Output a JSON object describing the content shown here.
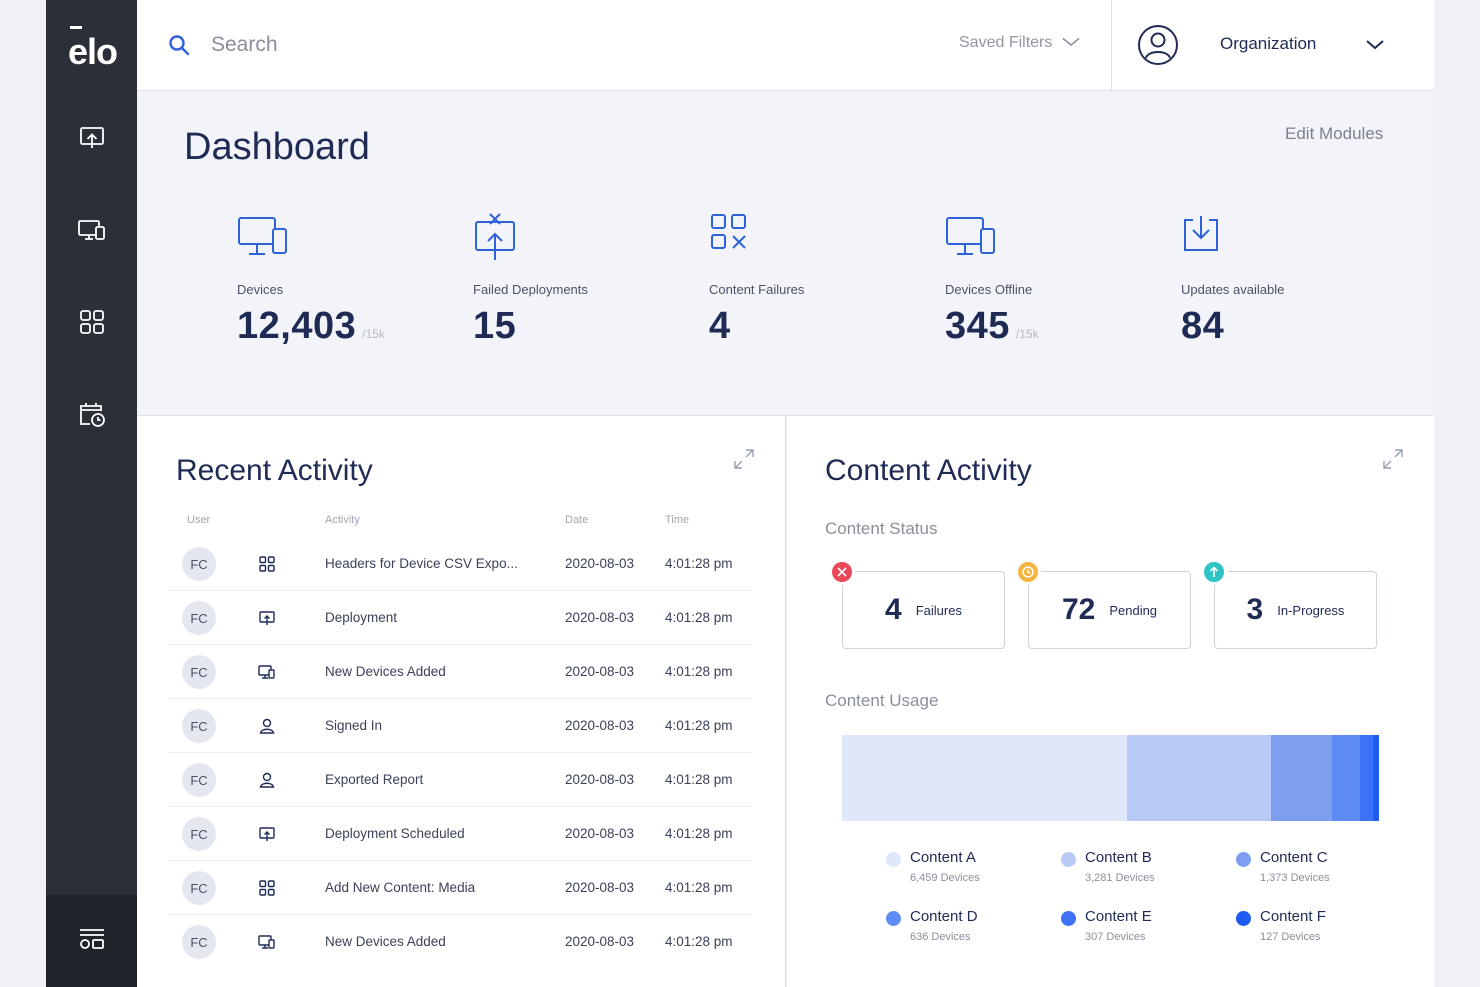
{
  "sidebar": {
    "logo": "ēlo",
    "items": [
      {
        "name": "deployments-nav",
        "icon": "upload-screen-icon"
      },
      {
        "name": "devices-nav",
        "icon": "devices-icon"
      },
      {
        "name": "content-nav",
        "icon": "grid-icon"
      },
      {
        "name": "schedule-nav",
        "icon": "calendar-clock-icon"
      }
    ],
    "bottom_icon": "layout-icon"
  },
  "topbar": {
    "search_placeholder": "Search",
    "saved_filters": "Saved Filters",
    "organization": "Organization"
  },
  "dashboard": {
    "title": "Dashboard",
    "edit_modules": "Edit Modules",
    "stats": [
      {
        "label": "Devices",
        "value": "12,403",
        "suffix": "/15k",
        "icon": "devices-icon"
      },
      {
        "label": "Failed Deployments",
        "value": "15",
        "suffix": "",
        "icon": "failed-deploy-icon"
      },
      {
        "label": "Content Failures",
        "value": "4",
        "suffix": "",
        "icon": "content-failure-icon"
      },
      {
        "label": "Devices Offline",
        "value": "345",
        "suffix": "/15k",
        "icon": "devices-icon"
      },
      {
        "label": "Updates available",
        "value": "84",
        "suffix": "",
        "icon": "download-icon"
      }
    ]
  },
  "recent_activity": {
    "title": "Recent Activity",
    "headers": {
      "user": "User",
      "activity": "Activity",
      "date": "Date",
      "time": "Time"
    },
    "rows": [
      {
        "user": "FC",
        "icon": "grid-icon",
        "activity": "Headers for Device CSV Expo...",
        "date": "2020-08-03",
        "time": "4:01:28 pm"
      },
      {
        "user": "FC",
        "icon": "upload-screen-icon",
        "activity": "Deployment",
        "date": "2020-08-03",
        "time": "4:01:28 pm"
      },
      {
        "user": "FC",
        "icon": "devices-icon",
        "activity": "New Devices Added",
        "date": "2020-08-03",
        "time": "4:01:28 pm"
      },
      {
        "user": "FC",
        "icon": "user-icon",
        "activity": "Signed In",
        "date": "2020-08-03",
        "time": "4:01:28 pm"
      },
      {
        "user": "FC",
        "icon": "user-icon",
        "activity": "Exported Report",
        "date": "2020-08-03",
        "time": "4:01:28 pm"
      },
      {
        "user": "FC",
        "icon": "upload-screen-icon",
        "activity": "Deployment Scheduled",
        "date": "2020-08-03",
        "time": "4:01:28 pm"
      },
      {
        "user": "FC",
        "icon": "grid-icon",
        "activity": "Add New Content: Media",
        "date": "2020-08-03",
        "time": "4:01:28 pm"
      },
      {
        "user": "FC",
        "icon": "devices-icon",
        "activity": "New Devices Added",
        "date": "2020-08-03",
        "time": "4:01:28 pm"
      }
    ]
  },
  "content_activity": {
    "title": "Content Activity",
    "status_title": "Content Status",
    "status": [
      {
        "value": "4",
        "label": "Failures",
        "badge_color": "#e8485a",
        "badge": "x-icon"
      },
      {
        "value": "72",
        "label": "Pending",
        "badge_color": "#f5b640",
        "badge": "clock-icon"
      },
      {
        "value": "3",
        "label": "In-Progress",
        "badge_color": "#2ec4c4",
        "badge": "arrow-up-icon"
      }
    ],
    "usage_title": "Content Usage",
    "usage": [
      {
        "name": "Content A",
        "devices": 6459,
        "devices_label": "6,459 Devices",
        "color": "#dfe7fb"
      },
      {
        "name": "Content B",
        "devices": 3281,
        "devices_label": "3,281 Devices",
        "color": "#b8cbf8"
      },
      {
        "name": "Content C",
        "devices": 1373,
        "devices_label": "1,373 Devices",
        "color": "#7e9ff0"
      },
      {
        "name": "Content D",
        "devices": 636,
        "devices_label": "636 Devices",
        "color": "#5f8bf4"
      },
      {
        "name": "Content E",
        "devices": 307,
        "devices_label": "307 Devices",
        "color": "#3d72f7"
      },
      {
        "name": "Content F",
        "devices": 127,
        "devices_label": "127 Devices",
        "color": "#1f5cf2"
      }
    ]
  }
}
